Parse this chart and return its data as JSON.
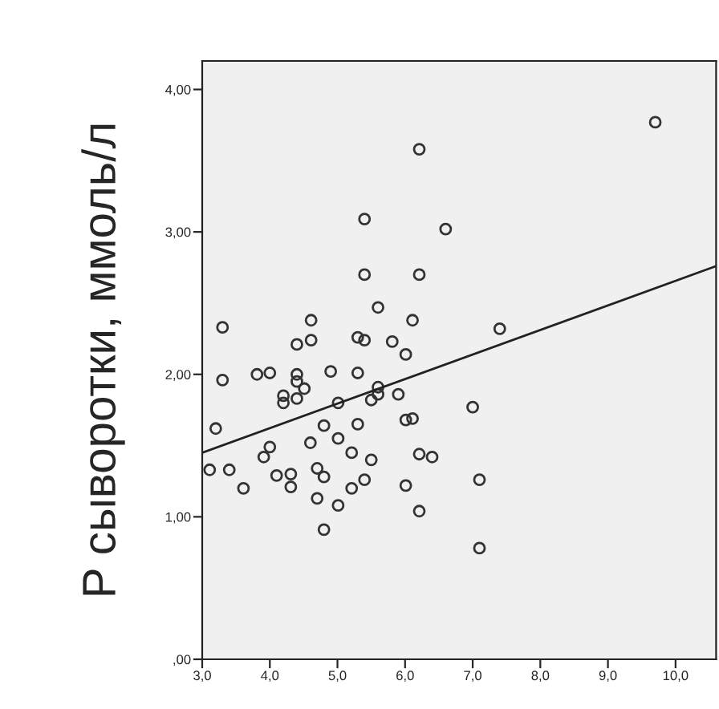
{
  "chart_data": {
    "type": "scatter",
    "ylabel": "P сыворотки, ммоль/л",
    "xlim": [
      3.0,
      10.6
    ],
    "ylim": [
      0,
      4.2
    ],
    "xticks": [
      {
        "value": 3,
        "label": "3,0"
      },
      {
        "value": 4,
        "label": "4,0"
      },
      {
        "value": 5,
        "label": "5,0"
      },
      {
        "value": 6,
        "label": "6,0"
      },
      {
        "value": 7,
        "label": "7,0"
      },
      {
        "value": 8,
        "label": "8,0"
      },
      {
        "value": 9,
        "label": "9,0"
      },
      {
        "value": 10,
        "label": "10,0"
      }
    ],
    "yticks": [
      {
        "value": 0,
        "label": ",00"
      },
      {
        "value": 1,
        "label": "1,00"
      },
      {
        "value": 2,
        "label": "2,00"
      },
      {
        "value": 3,
        "label": "3,00"
      },
      {
        "value": 4,
        "label": "4,00"
      }
    ],
    "grid": false,
    "legend": false,
    "series": [
      {
        "marker": "circle",
        "color": "#333333",
        "x": [
          9.7,
          6.21,
          5.4,
          6.6,
          5.4,
          6.21,
          5.6,
          3.3,
          4.61,
          6.11,
          7.4,
          4.4,
          4.61,
          5.3,
          5.4,
          5.81,
          6.01,
          3.3,
          3.81,
          4.0,
          4.4,
          4.4,
          4.51,
          4.9,
          5.3,
          4.2,
          4.2,
          4.4,
          5.01,
          5.5,
          5.6,
          5.6,
          5.9,
          3.2,
          6.01,
          6.11,
          7.0,
          4.8,
          5.3,
          4.6,
          5.01,
          4.0,
          3.91,
          5.21,
          5.5,
          6.21,
          6.4,
          3.11,
          3.4,
          3.61,
          4.1,
          4.31,
          4.31,
          4.7,
          4.8,
          4.7,
          5.21,
          5.4,
          5.01,
          6.01,
          7.1,
          6.21,
          4.8,
          7.1
        ],
        "values": [
          3.77,
          3.58,
          3.09,
          3.02,
          2.7,
          2.7,
          2.47,
          2.33,
          2.38,
          2.38,
          2.32,
          2.21,
          2.24,
          2.26,
          2.24,
          2.23,
          2.14,
          1.96,
          2.0,
          2.01,
          2.0,
          1.95,
          1.9,
          2.02,
          2.01,
          1.85,
          1.8,
          1.83,
          1.8,
          1.82,
          1.91,
          1.86,
          1.86,
          1.62,
          1.68,
          1.69,
          1.77,
          1.64,
          1.65,
          1.52,
          1.55,
          1.49,
          1.42,
          1.45,
          1.4,
          1.44,
          1.42,
          1.33,
          1.33,
          1.2,
          1.29,
          1.3,
          1.21,
          1.34,
          1.28,
          1.13,
          1.2,
          1.26,
          1.08,
          1.22,
          1.26,
          1.04,
          0.91,
          0.78
        ]
      },
      {
        "type": "line",
        "marker": "none",
        "line_style": "solid",
        "color": "#222222",
        "x": [
          3.0,
          10.6
        ],
        "values": [
          1.45,
          2.76
        ]
      }
    ]
  }
}
